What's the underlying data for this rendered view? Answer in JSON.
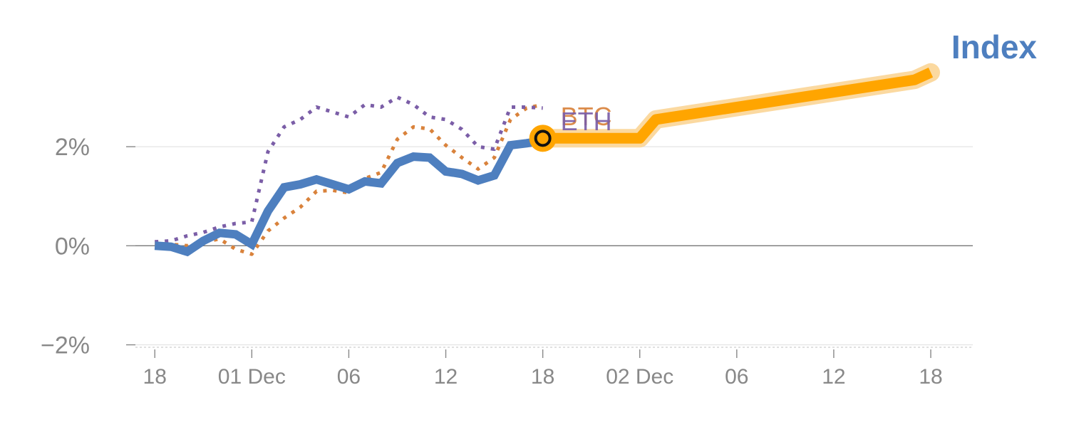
{
  "chart_data": {
    "type": "line",
    "title": "Index",
    "title_color": "#4e7fbf",
    "y_ticks": [
      {
        "value": -2,
        "label": "−2%"
      },
      {
        "value": 0,
        "label": "0%"
      },
      {
        "value": 2,
        "label": "2%"
      }
    ],
    "ylim": [
      -2.05,
      4.1
    ],
    "x_tick_labels": [
      "18",
      "01 Dec",
      "06",
      "12",
      "18",
      "02 Dec",
      "06",
      "12",
      "18"
    ],
    "x_tick_index": [
      0,
      6,
      12,
      18,
      24,
      30,
      36,
      42,
      48
    ],
    "xlim": [
      -1.2,
      50.6
    ],
    "grid": true,
    "series": [
      {
        "name": "",
        "style": "solid",
        "color": "#4e7fbf",
        "x": [
          0,
          1,
          2,
          3,
          4,
          5,
          6,
          7,
          8,
          9,
          10,
          11,
          12,
          13,
          14,
          15,
          16,
          17,
          18,
          19,
          20,
          21,
          22,
          23,
          24
        ],
        "values": [
          0.0,
          -0.02,
          -0.12,
          0.1,
          0.26,
          0.23,
          0.03,
          0.7,
          1.18,
          1.24,
          1.34,
          1.24,
          1.14,
          1.3,
          1.26,
          1.67,
          1.8,
          1.78,
          1.5,
          1.45,
          1.32,
          1.42,
          2.03,
          2.07,
          2.12
        ]
      },
      {
        "name": "BTC",
        "style": "dotted",
        "color": "#d9823b",
        "x": [
          0,
          1,
          2,
          3,
          4,
          5,
          6,
          7,
          8,
          9,
          10,
          11,
          12,
          13,
          14,
          15,
          16,
          17,
          18,
          19,
          20,
          21,
          22,
          23,
          24
        ],
        "values": [
          0.05,
          0.03,
          0.0,
          0.07,
          0.14,
          -0.07,
          -0.17,
          0.3,
          0.56,
          0.78,
          1.1,
          1.12,
          1.07,
          1.36,
          1.48,
          2.15,
          2.4,
          2.36,
          2.03,
          1.78,
          1.55,
          1.78,
          2.55,
          2.78,
          2.85
        ]
      },
      {
        "name": "ETH",
        "style": "dotted",
        "color": "#7b5ea7",
        "x": [
          0,
          1,
          2,
          3,
          4,
          5,
          6,
          7,
          8,
          9,
          10,
          11,
          12,
          13,
          14,
          15,
          16,
          17,
          18,
          19,
          20,
          21,
          22,
          23,
          24
        ],
        "values": [
          0.08,
          0.1,
          0.2,
          0.27,
          0.38,
          0.45,
          0.48,
          1.9,
          2.4,
          2.55,
          2.8,
          2.7,
          2.6,
          2.85,
          2.8,
          3.0,
          2.85,
          2.6,
          2.55,
          2.35,
          2.0,
          1.95,
          2.8,
          2.8,
          2.78
        ]
      },
      {
        "name": "",
        "style": "projection",
        "color": "#ffa500",
        "x": [
          24,
          30,
          31,
          47,
          48
        ],
        "values": [
          2.17,
          2.17,
          2.55,
          3.35,
          3.5
        ]
      }
    ],
    "marker": {
      "x": 24,
      "value": 2.17,
      "color": "#ffa500"
    },
    "series_labels": [
      {
        "text": "BTC",
        "color": "#d9823b"
      },
      {
        "text": "ETH",
        "color": "#7b5ea7"
      }
    ]
  }
}
